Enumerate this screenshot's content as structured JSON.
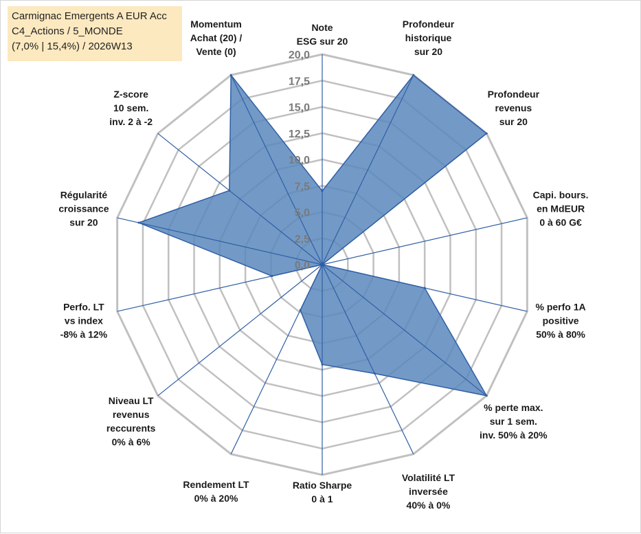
{
  "chart_data": {
    "type": "radar",
    "title_lines": [
      "Carmignac Emergents A EUR Acc",
      "C4_Actions / 5_MONDE",
      "(7,0% | 15,4%) / 2026W13"
    ],
    "rmin": 0,
    "rmax": 20,
    "ticks": [
      "0,0",
      "2,5",
      "5,0",
      "7,5",
      "10,0",
      "12,5",
      "15,0",
      "17,5",
      "20,0"
    ],
    "tick_values": [
      0,
      2.5,
      5,
      7.5,
      10,
      12.5,
      15,
      17.5,
      20
    ],
    "axes": [
      {
        "label": [
          "Note",
          "ESG sur 20"
        ]
      },
      {
        "label": [
          "Profondeur",
          "historique",
          "sur 20"
        ]
      },
      {
        "label": [
          "Profondeur",
          "revenus",
          "sur 20"
        ]
      },
      {
        "label": [
          "Capi. bours.",
          "en MdEUR",
          "0 à 60 G€"
        ]
      },
      {
        "label": [
          "% perfo 1A",
          "positive",
          "50% à 80%"
        ]
      },
      {
        "label": [
          "% perte max.",
          "sur 1 sem.",
          "inv. 50% à 20%"
        ]
      },
      {
        "label": [
          "Volatilité LT",
          "inversée",
          "40% à 0%"
        ]
      },
      {
        "label": [
          "Ratio Sharpe",
          "0 à 1"
        ]
      },
      {
        "label": [
          "Rendement LT",
          "0% à 20%"
        ]
      },
      {
        "label": [
          "Niveau LT",
          "revenus",
          "reccurents",
          "0% à 6%"
        ]
      },
      {
        "label": [
          "Perfo. LT",
          "vs index",
          "-8% à 12%"
        ]
      },
      {
        "label": [
          "Régularité",
          "croissance",
          "sur 20"
        ]
      },
      {
        "label": [
          "Z-score",
          "10 sem.",
          "inv. 2 à -2"
        ]
      },
      {
        "label": [
          "Momentum",
          "Achat (20) /",
          "Vente (0)"
        ]
      }
    ],
    "series": [
      {
        "name": "Carmignac Emergents A EUR Acc",
        "values": [
          7.0,
          20.0,
          20.0,
          0.0,
          10.0,
          20.0,
          11.5,
          9.5,
          4.8,
          0.0,
          4.9,
          17.9,
          11.3,
          20.0
        ]
      }
    ],
    "colors": {
      "fill": "#5b88bc",
      "stroke": "#2f5ea6",
      "grid": "#c0c0c0",
      "spoke": "#2f5ea6"
    }
  }
}
